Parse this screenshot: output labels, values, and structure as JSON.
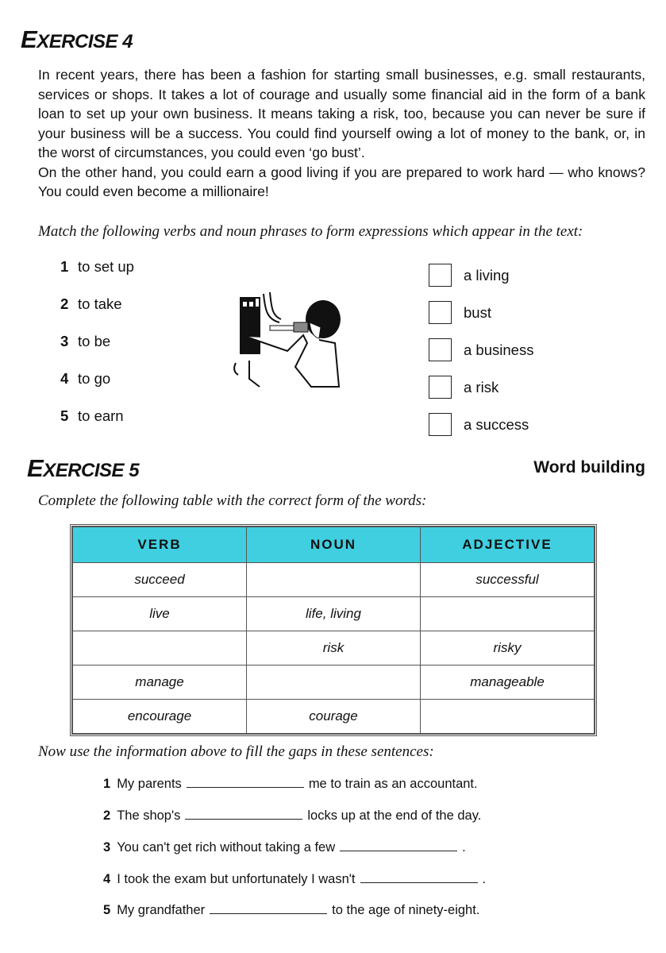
{
  "exercise4": {
    "title_first": "E",
    "title_rest": "XERCISE 4",
    "paragraph1": "In recent years, there has been a fashion for starting small businesses, e.g. small restaurants, services or shops. It takes a lot of courage and usually some financial aid in the form of a bank loan to set up your own business. It means taking a risk, too, because you can never be sure if your business will be a success. You could find yourself owing a lot of money to the bank, or, in the worst of circumstances, you could even ‘go bust’.",
    "paragraph2": "On the other hand, you could earn a good living if you are prepared to work hard — who knows? You could even become a millionaire!",
    "instruction": "Match the following verbs and noun phrases to form expressions which appear in the text:",
    "verbs": [
      {
        "num": "1",
        "text": "to set up"
      },
      {
        "num": "2",
        "text": "to take"
      },
      {
        "num": "3",
        "text": "to be"
      },
      {
        "num": "4",
        "text": "to go"
      },
      {
        "num": "5",
        "text": "to earn"
      }
    ],
    "nouns": [
      "a living",
      "bust",
      "a business",
      "a risk",
      "a success"
    ],
    "illustration": "woman-with-drill-illustration"
  },
  "exercise5": {
    "title_first": "E",
    "title_rest": "XERCISE 5",
    "subtitle": "Word building",
    "instruction": "Complete the following table with the correct form of the words:",
    "table": {
      "headers": [
        "VERB",
        "NOUN",
        "ADJECTIVE"
      ],
      "header_color": "#3fcfe0",
      "rows": [
        [
          "succeed",
          "",
          "successful"
        ],
        [
          "live",
          "life, living",
          ""
        ],
        [
          "",
          "risk",
          "risky"
        ],
        [
          "manage",
          "",
          "manageable"
        ],
        [
          "encourage",
          "courage",
          ""
        ]
      ]
    },
    "instruction2": "Now use the information above to fill the gaps in these sentences:",
    "sentences": [
      {
        "num": "1",
        "before": "My parents",
        "after": "me to train as an accountant."
      },
      {
        "num": "2",
        "before": "The shop's",
        "after": "locks up at the end of the day."
      },
      {
        "num": "3",
        "before": "You can't get rich without taking a few",
        "after": "."
      },
      {
        "num": "4",
        "before": "I took the exam but unfortunately I wasn't",
        "after": "."
      },
      {
        "num": "5",
        "before": "My grandfather",
        "after": "to the age of ninety-eight."
      }
    ]
  }
}
